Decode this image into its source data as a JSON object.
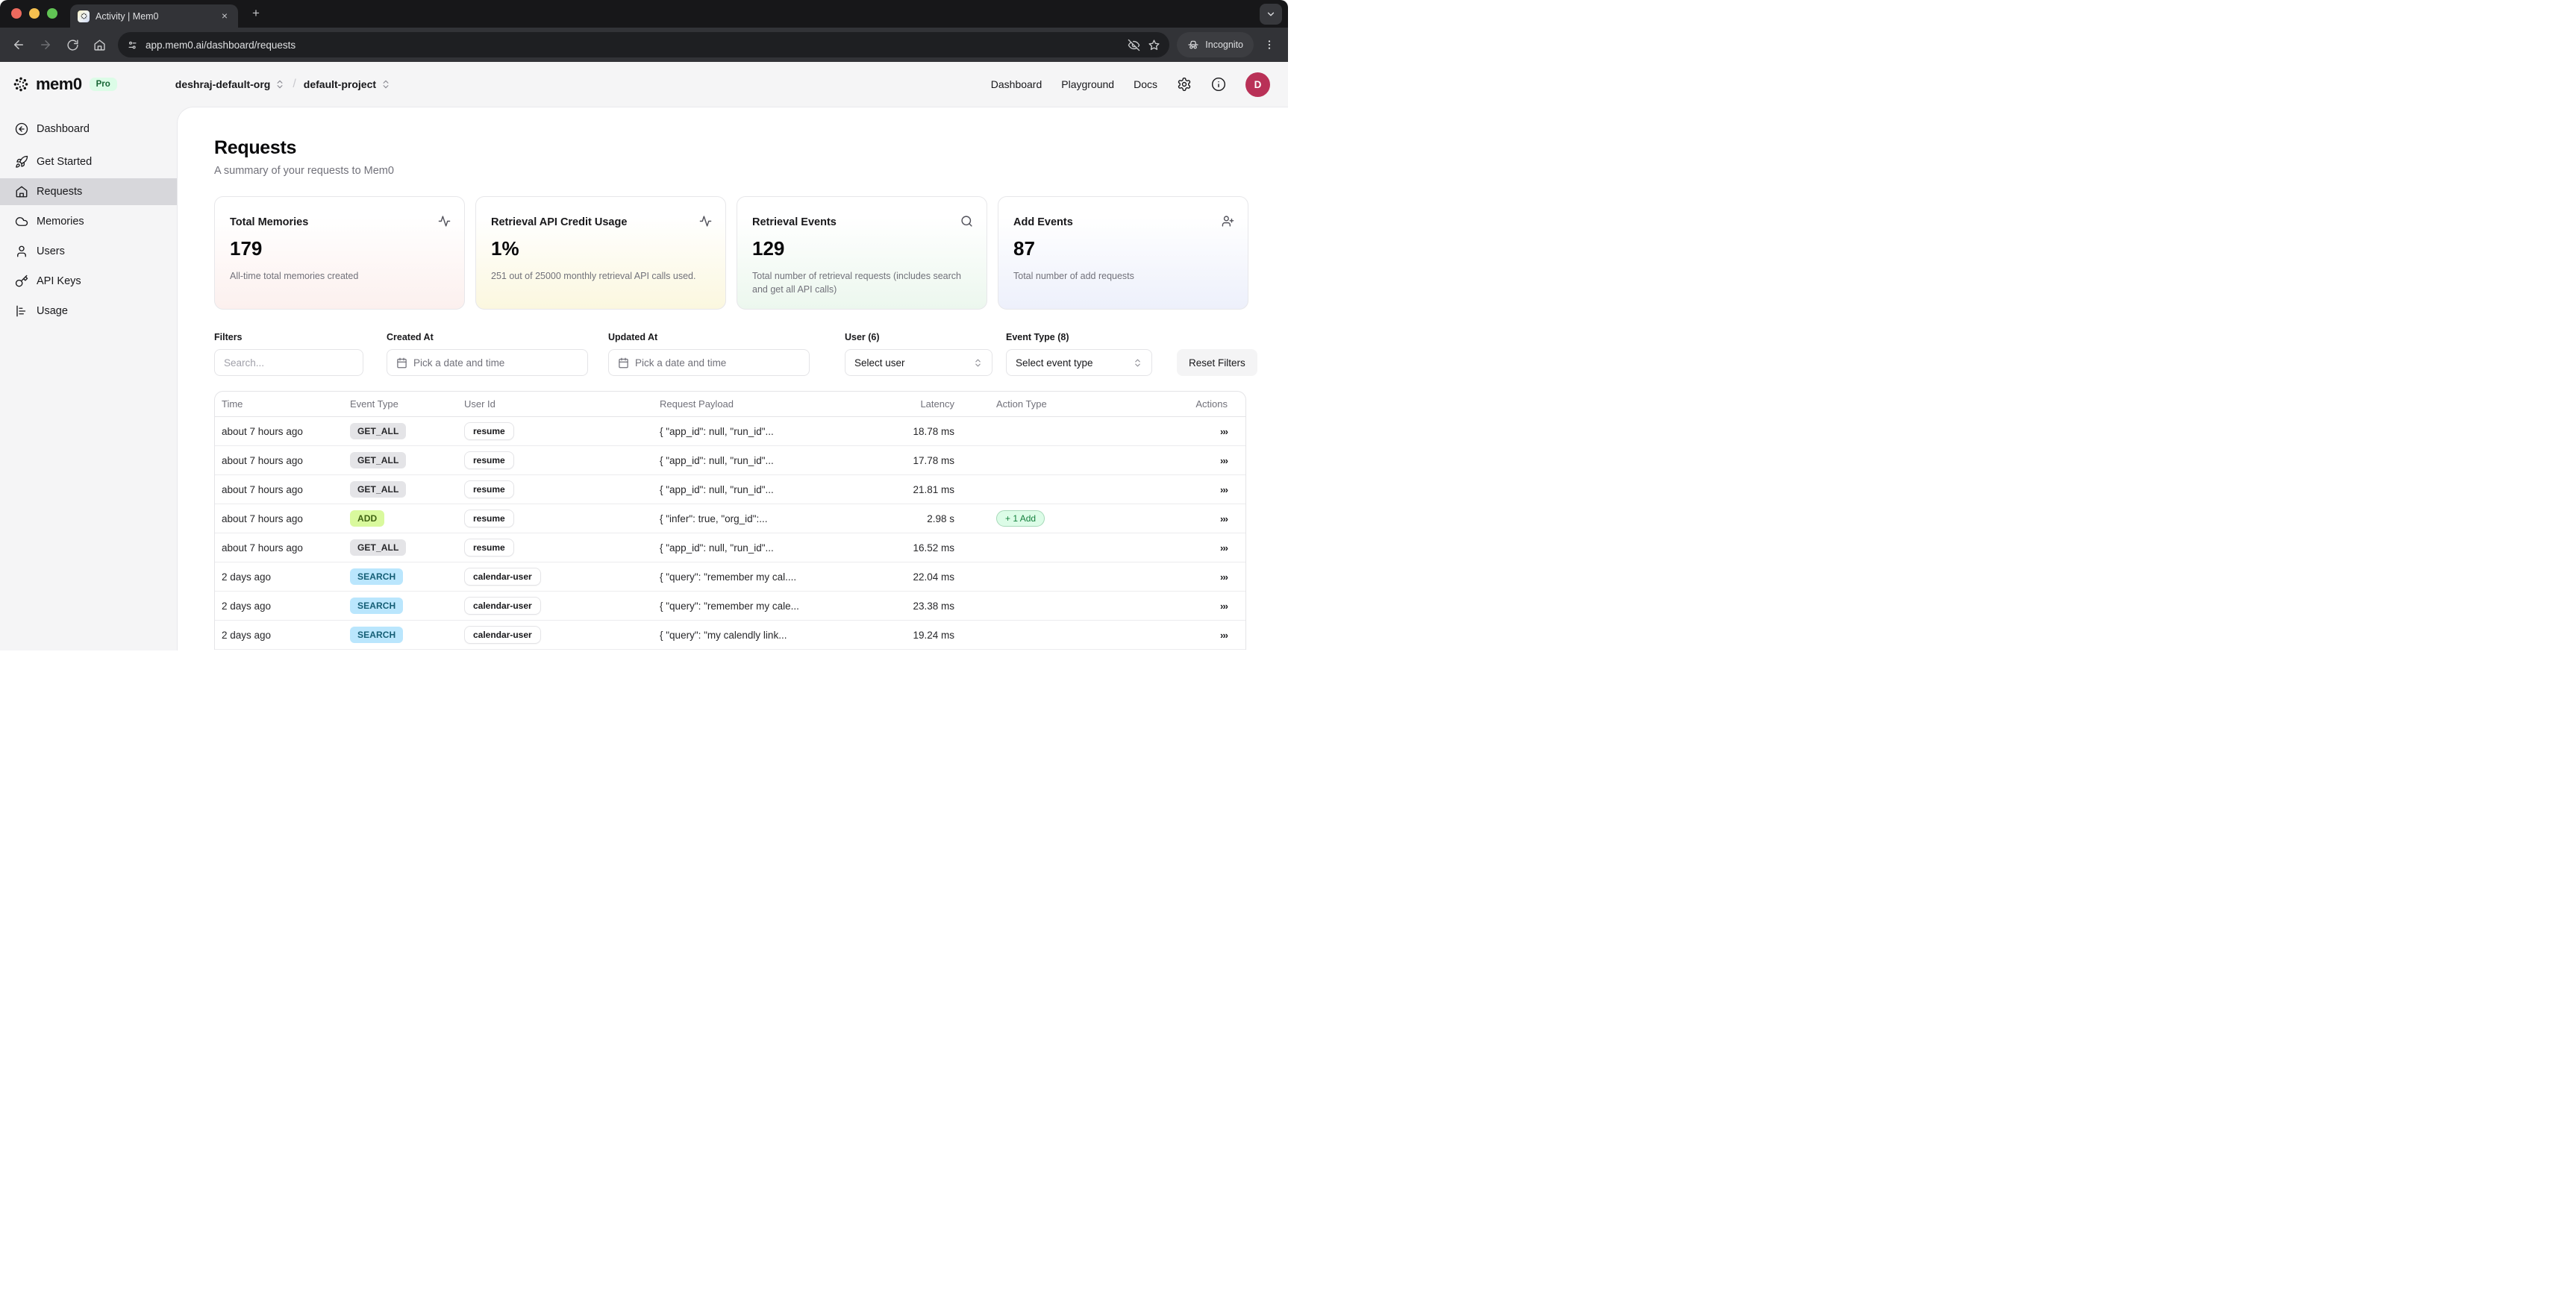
{
  "browser": {
    "tab_title": "Activity | Mem0",
    "new_tab": "+",
    "close_tab": "×",
    "url": "app.mem0.ai/dashboard/requests",
    "incognito_label": "Incognito"
  },
  "header": {
    "logo_text": "mem0",
    "plan_badge": "Pro",
    "org_name": "deshraj-default-org",
    "separator": "/",
    "project_name": "default-project",
    "nav": {
      "dashboard": "Dashboard",
      "playground": "Playground",
      "docs": "Docs"
    },
    "avatar_initial": "D"
  },
  "sidebar": {
    "items": [
      {
        "label": "Dashboard",
        "icon": "circle-arrow-left-icon"
      },
      {
        "label": "Get Started",
        "icon": "rocket-icon"
      },
      {
        "label": "Requests",
        "icon": "home-icon",
        "active": true
      },
      {
        "label": "Memories",
        "icon": "cloud-icon"
      },
      {
        "label": "Users",
        "icon": "user-icon"
      },
      {
        "label": "API Keys",
        "icon": "key-icon"
      },
      {
        "label": "Usage",
        "icon": "bar-chart-icon"
      }
    ]
  },
  "page": {
    "title": "Requests",
    "subtitle": "A summary of your requests to Mem0"
  },
  "cards": [
    {
      "title": "Total Memories",
      "value": "179",
      "description": "All-time total memories created",
      "icon": "activity-icon",
      "tint": "#fcf0ee"
    },
    {
      "title": "Retrieval API Credit Usage",
      "value": "1%",
      "description": "251 out of 25000 monthly retrieval API calls used.",
      "icon": "activity-icon",
      "tint": "#fbf7df"
    },
    {
      "title": "Retrieval Events",
      "value": "129",
      "description": "Total number of retrieval requests (includes search and get all API calls)",
      "icon": "search-icon",
      "tint": "#ecf7ee"
    },
    {
      "title": "Add Events",
      "value": "87",
      "description": "Total number of add requests",
      "icon": "user-plus-icon",
      "tint": "#edf0fb"
    }
  ],
  "filters": {
    "search_label": "Filters",
    "search_placeholder": "Search...",
    "created_label": "Created At",
    "updated_label": "Updated At",
    "date_placeholder": "Pick a date and time",
    "user_label": "User (6)",
    "user_placeholder": "Select user",
    "event_label": "Event Type (8)",
    "event_placeholder": "Select event type",
    "reset_label": "Reset Filters"
  },
  "table": {
    "columns": [
      "Time",
      "Event Type",
      "User Id",
      "Request Payload",
      "Latency",
      "Action Type",
      "Actions"
    ],
    "actions_icon": "›››",
    "badge_colors": {
      "GET_ALL": {
        "bg": "#e4e4e7",
        "text": "#27272a"
      },
      "ADD": {
        "bg": "#d9f99d",
        "text": "#3f6212"
      },
      "SEARCH": {
        "bg": "#bae6fd",
        "text": "#155e75"
      }
    },
    "action_chip_colors": {
      "bg": "#dcfce7",
      "border": "#a7d9b9",
      "text": "#15803d"
    },
    "rows": [
      {
        "time": "about 7 hours ago",
        "event_type": "GET_ALL",
        "user_id": "resume",
        "payload": "{ \"app_id\": null, \"run_id\"...",
        "latency": "18.78 ms",
        "action_type": ""
      },
      {
        "time": "about 7 hours ago",
        "event_type": "GET_ALL",
        "user_id": "resume",
        "payload": "{ \"app_id\": null, \"run_id\"...",
        "latency": "17.78 ms",
        "action_type": ""
      },
      {
        "time": "about 7 hours ago",
        "event_type": "GET_ALL",
        "user_id": "resume",
        "payload": "{ \"app_id\": null, \"run_id\"...",
        "latency": "21.81 ms",
        "action_type": ""
      },
      {
        "time": "about 7 hours ago",
        "event_type": "ADD",
        "user_id": "resume",
        "payload": "{ \"infer\": true, \"org_id\":...",
        "latency": "2.98 s",
        "action_type": "+ 1 Add"
      },
      {
        "time": "about 7 hours ago",
        "event_type": "GET_ALL",
        "user_id": "resume",
        "payload": "{ \"app_id\": null, \"run_id\"...",
        "latency": "16.52 ms",
        "action_type": ""
      },
      {
        "time": "2 days ago",
        "event_type": "SEARCH",
        "user_id": "calendar-user",
        "payload": "{ \"query\": \"remember my cal....",
        "latency": "22.04 ms",
        "action_type": ""
      },
      {
        "time": "2 days ago",
        "event_type": "SEARCH",
        "user_id": "calendar-user",
        "payload": "{ \"query\": \"remember my cale...",
        "latency": "23.38 ms",
        "action_type": ""
      },
      {
        "time": "2 days ago",
        "event_type": "SEARCH",
        "user_id": "calendar-user",
        "payload": "{ \"query\": \"my calendly link...",
        "latency": "19.24 ms",
        "action_type": ""
      }
    ]
  },
  "colors": {
    "traffic_red": "#ed6a5e",
    "traffic_yellow": "#f4bf4f",
    "traffic_green": "#61c454",
    "avatar_bg": "#b93157",
    "accent_green": "#dcfce7"
  }
}
